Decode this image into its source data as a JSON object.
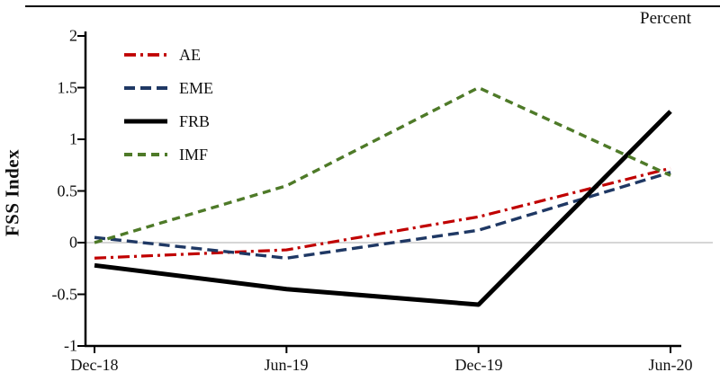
{
  "header": {
    "percent_label": "Percent"
  },
  "chart_data": {
    "type": "line",
    "title": "",
    "xlabel": "",
    "ylabel": "FSS Index",
    "unit_label": "Percent",
    "x": [
      "Dec-18",
      "Jun-19",
      "Dec-19",
      "Jun-20"
    ],
    "ylim": [
      -1,
      2
    ],
    "yticks": [
      2,
      1.5,
      1,
      0.5,
      0,
      -0.5,
      -1
    ],
    "ytick_labels": [
      "2",
      "1.5",
      "1",
      "0.5",
      "0",
      "-0.5",
      "-1"
    ],
    "zero_gridline": true,
    "zero_gridline_color": "#c9c9c9",
    "legend_position": "top-left-inside",
    "series": [
      {
        "name": "AE",
        "color": "#c00000",
        "dash": "13 5 3 5",
        "width": 3.2,
        "values": [
          -0.15,
          -0.07,
          0.25,
          0.72
        ]
      },
      {
        "name": "EME",
        "color": "#1f3864",
        "dash": "12 6",
        "width": 3.4,
        "values": [
          0.05,
          -0.15,
          0.12,
          0.68
        ]
      },
      {
        "name": "FRB",
        "color": "#000000",
        "dash": "",
        "width": 5,
        "values": [
          -0.22,
          -0.45,
          -0.6,
          1.27
        ]
      },
      {
        "name": "IMF",
        "color": "#4e7a28",
        "dash": "9 6",
        "width": 3.4,
        "values": [
          0.0,
          0.55,
          1.5,
          0.65
        ]
      }
    ]
  }
}
